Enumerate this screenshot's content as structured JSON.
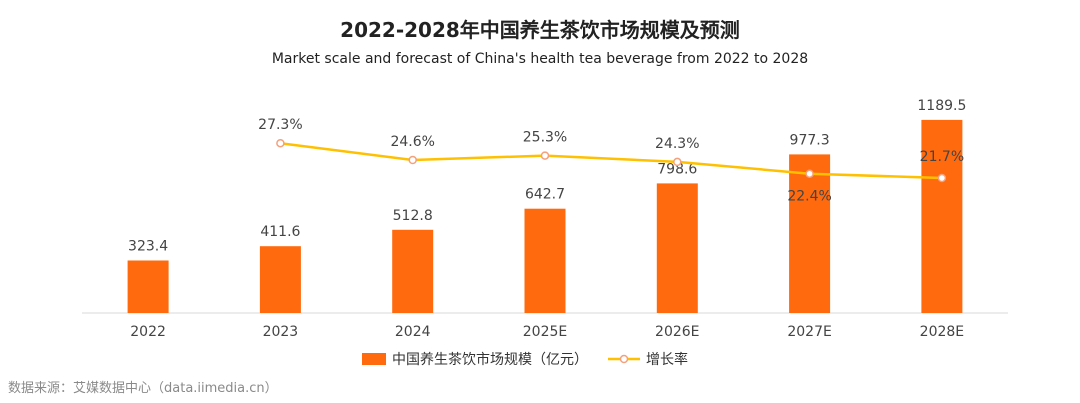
{
  "chart_data": {
    "type": "bar",
    "title": "2022-2028年中国养生茶饮市场规模及预测",
    "subtitle": "Market scale and forecast of China's health tea beverage from 2022 to 2028",
    "categories": [
      "2022",
      "2023",
      "2024",
      "2025E",
      "2026E",
      "2027E",
      "2028E"
    ],
    "series": [
      {
        "name": "中国养生茶饮市场规模（亿元）",
        "type": "bar",
        "axis": "left",
        "color": "#FF6A0E",
        "values": [
          323.4,
          411.6,
          512.8,
          642.7,
          798.6,
          977.3,
          1189.5
        ],
        "labels": [
          "323.4",
          "411.6",
          "512.8",
          "642.7",
          "798.6",
          "977.3",
          "1189.5"
        ]
      },
      {
        "name": "增长率",
        "type": "line",
        "axis": "right",
        "color": "#FFC000",
        "marker_fill": "#FFFFFF",
        "marker_stroke": "#F4A07C",
        "values": [
          null,
          27.3,
          24.6,
          25.3,
          24.3,
          22.4,
          21.7
        ],
        "labels": [
          "",
          "27.3%",
          "24.6%",
          "25.3%",
          "24.3%",
          "22.4%",
          "21.7%"
        ]
      }
    ],
    "ylim_left": [
      0,
      1300
    ],
    "ylim_right": [
      0,
      50
    ],
    "grid": false,
    "legend_position": "bottom"
  },
  "source_note": "数据来源：艾媒数据中心（data.iimedia.cn）"
}
